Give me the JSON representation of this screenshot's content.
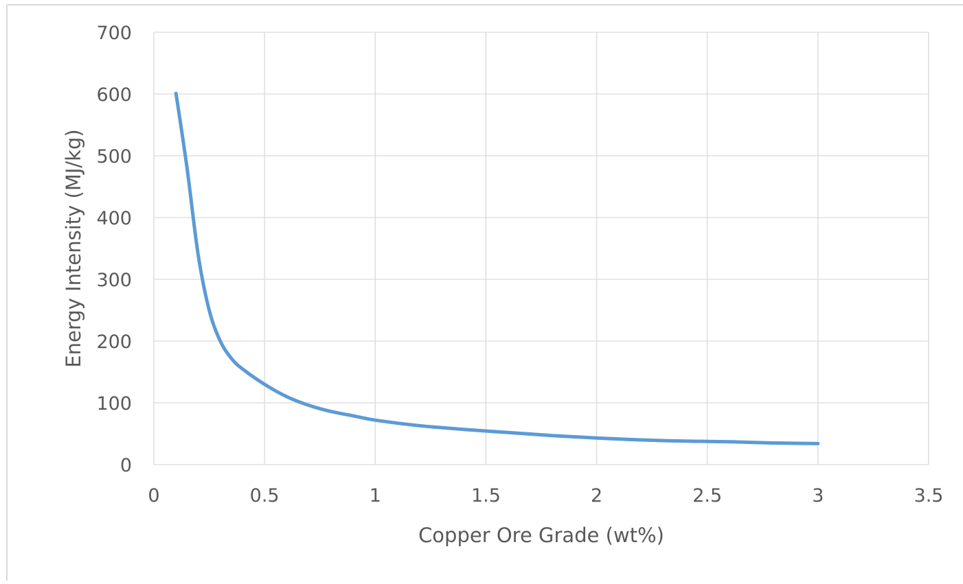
{
  "chart_data": {
    "type": "line",
    "title": "",
    "xlabel": "Copper Ore Grade (wt%)",
    "ylabel": "Energy Intensity (MJ/kg)",
    "xlim": [
      0,
      3.5
    ],
    "ylim": [
      0,
      700
    ],
    "x_ticks": [
      "0",
      "0.5",
      "1",
      "1.5",
      "2",
      "2.5",
      "3",
      "3.5"
    ],
    "y_ticks": [
      "0",
      "100",
      "200",
      "300",
      "400",
      "500",
      "600",
      "700"
    ],
    "grid": true,
    "legend": "none",
    "line_color": "#5b9bd5",
    "series": [
      {
        "x": [
          0.1,
          0.15,
          0.2,
          0.25,
          0.3,
          0.35,
          0.4,
          0.5,
          0.6,
          0.7,
          0.8,
          0.9,
          1.0,
          1.2,
          1.4,
          1.6,
          1.8,
          2.0,
          2.2,
          2.4,
          2.6,
          2.8,
          3.0
        ],
        "values": [
          601,
          480,
          340,
          250,
          200,
          172,
          155,
          130,
          110,
          96,
          86,
          79,
          72,
          63,
          57,
          52,
          47,
          43,
          40,
          38,
          37,
          35,
          34
        ]
      }
    ]
  }
}
